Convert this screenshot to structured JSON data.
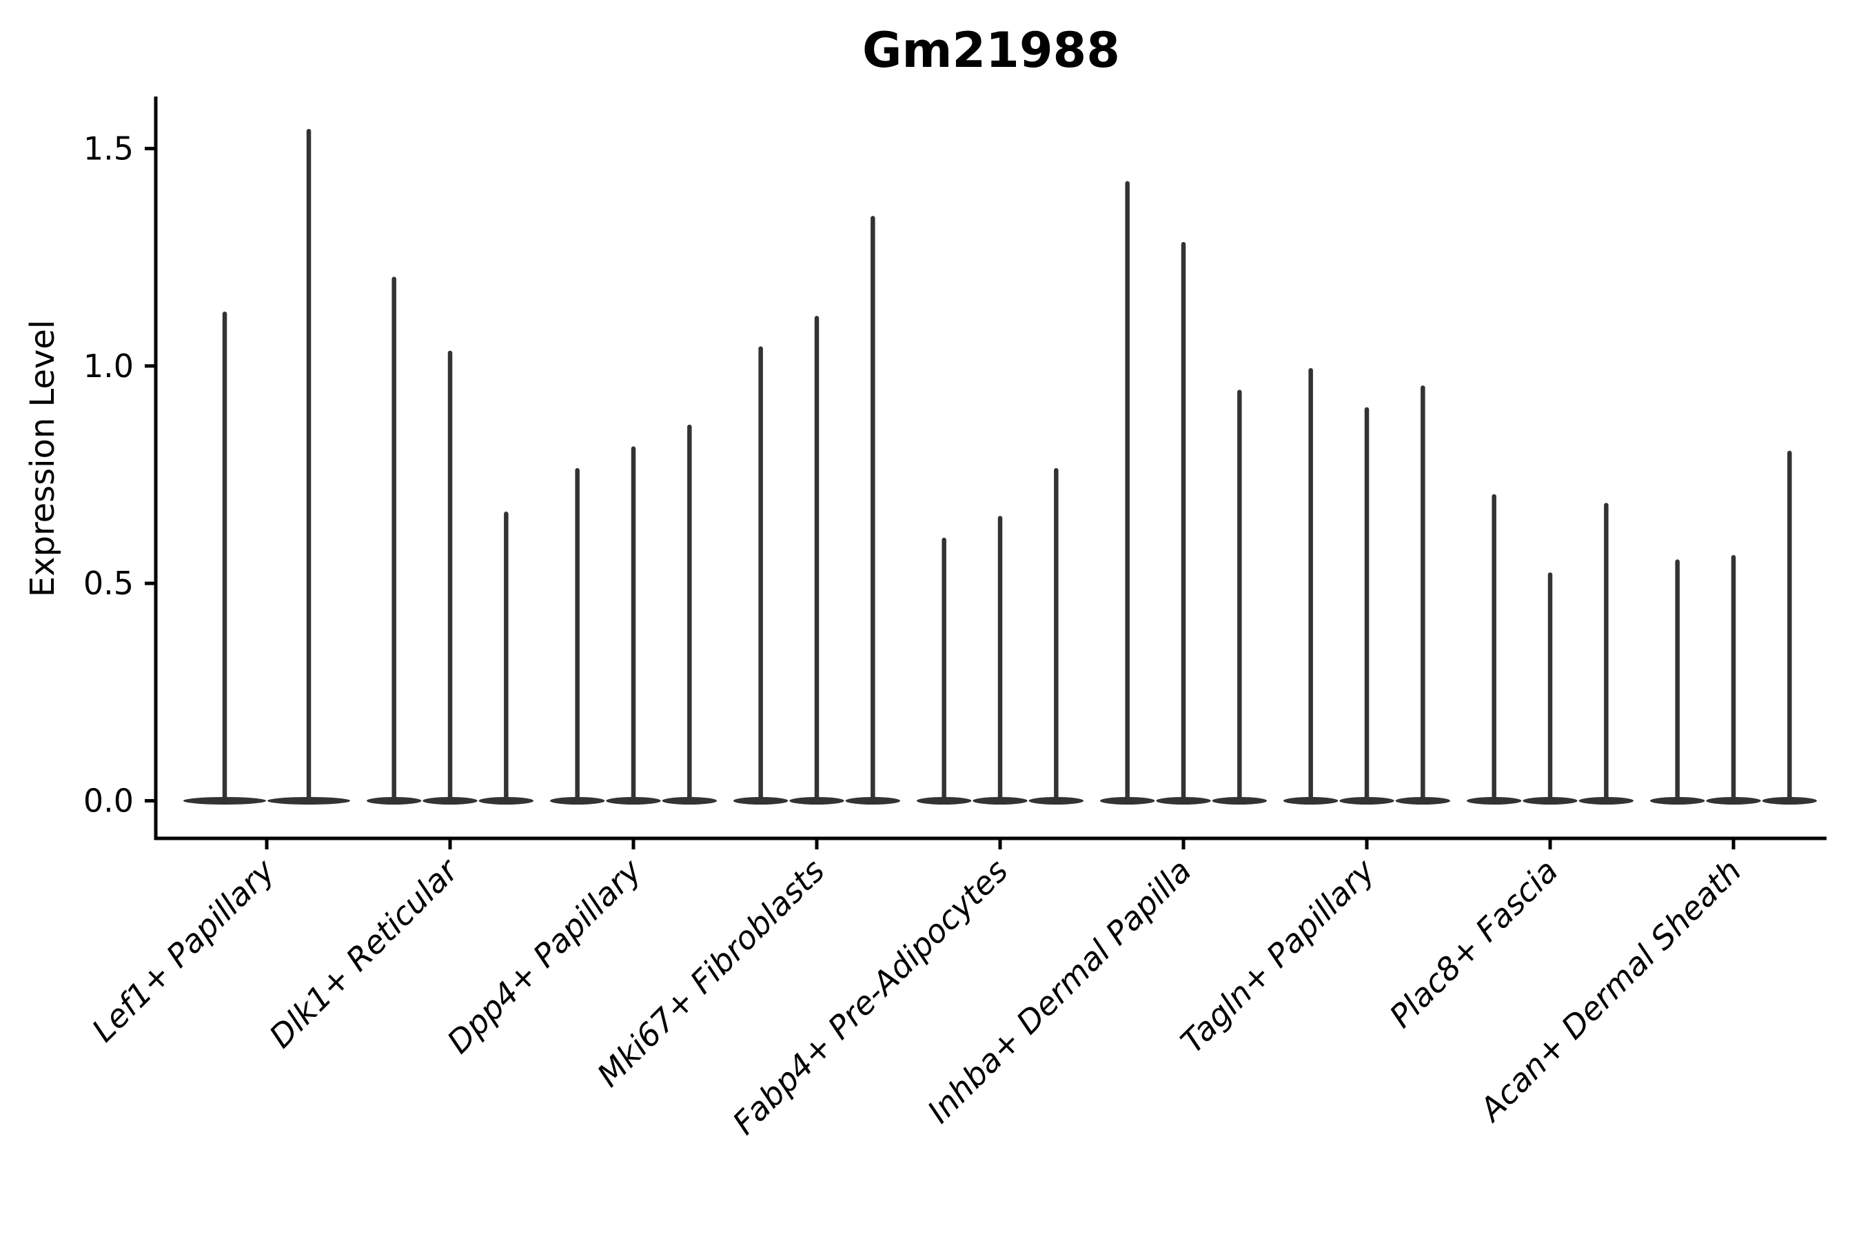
{
  "title": "Gm21988",
  "chart_data": {
    "type": "violin",
    "title": "Gm21988",
    "xlabel": "",
    "ylabel": "Expression Level",
    "ytick_labels": [
      "0.0",
      "0.5",
      "1.0",
      "1.5"
    ],
    "ytick_values": [
      0.0,
      0.5,
      1.0,
      1.5
    ],
    "ylim": [
      -0.09,
      1.62
    ],
    "grid": false,
    "legend": "none",
    "description": "Violin plot of gene expression; each cell-type group shows narrow needle-like violins (density concentrated at 0) whose stems reach the listed maximum expression value.",
    "categories": [
      {
        "label": "Lef1+ Papillary",
        "violin_max_values": [
          1.12,
          1.54
        ]
      },
      {
        "label": "Dlk1+ Reticular",
        "violin_max_values": [
          1.2,
          1.03,
          0.66
        ]
      },
      {
        "label": "Dpp4+ Papillary",
        "violin_max_values": [
          0.76,
          0.81,
          0.86
        ]
      },
      {
        "label": "Mki67+ Fibroblasts",
        "violin_max_values": [
          1.04,
          1.11,
          1.34
        ]
      },
      {
        "label": "Fabp4+ Pre-Adipocytes",
        "violin_max_values": [
          0.6,
          0.65,
          0.76
        ]
      },
      {
        "label": "Inhba+ Dermal Papilla",
        "violin_max_values": [
          1.42,
          1.28,
          0.94
        ]
      },
      {
        "label": "Tagln+ Papillary",
        "violin_max_values": [
          0.99,
          0.9,
          0.95
        ]
      },
      {
        "label": "Plac8+ Fascia",
        "violin_max_values": [
          0.7,
          0.52,
          0.68
        ]
      },
      {
        "label": "Acan+ Dermal Sheath",
        "violin_max_values": [
          0.55,
          0.56,
          0.8
        ]
      }
    ],
    "colors": {
      "violin": "#333333",
      "spine": "#000000",
      "text": "#000000",
      "background": "#ffffff"
    }
  }
}
